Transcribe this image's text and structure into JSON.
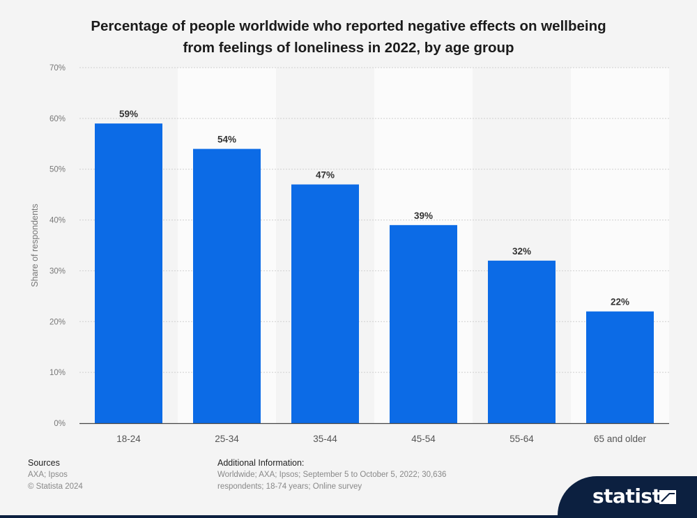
{
  "title_line1": "Percentage of people worldwide who reported negative effects on wellbeing",
  "title_line2": "from feelings of loneliness in 2022, by age group",
  "chart_data": {
    "type": "bar",
    "categories": [
      "18-24",
      "25-34",
      "35-44",
      "45-54",
      "55-64",
      "65 and older"
    ],
    "values": [
      59,
      54,
      47,
      39,
      32,
      22
    ],
    "data_labels": [
      "59%",
      "54%",
      "47%",
      "39%",
      "32%",
      "22%"
    ],
    "ylabel": "Share of respondents",
    "ylim": [
      0,
      70
    ],
    "yticks": [
      0,
      10,
      20,
      30,
      40,
      50,
      60,
      70
    ],
    "ytick_labels": [
      "0%",
      "10%",
      "20%",
      "30%",
      "40%",
      "50%",
      "60%",
      "70%"
    ],
    "grid": true,
    "bar_color": "#0c6be6"
  },
  "sources": {
    "heading": "Sources",
    "line1": "AXA; Ipsos",
    "line2": "© Statista 2024"
  },
  "additional_info": {
    "heading": "Additional Information:",
    "text": "Worldwide; AXA; Ipsos; September 5 to October 5, 2022; 30,636 respondents; 18-74 years; Online survey"
  },
  "logo": {
    "text": "statista",
    "color": "#0c2040"
  }
}
